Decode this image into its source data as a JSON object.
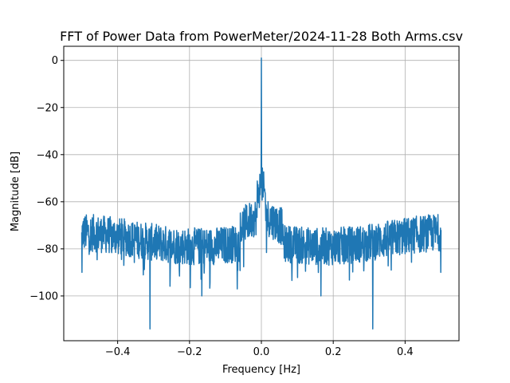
{
  "chart_data": {
    "type": "line",
    "title": "FFT of Power Data from PowerMeter/2024-11-28 Both Arms.csv",
    "xlabel": "Frequency [Hz]",
    "ylabel": "Magnitude [dB]",
    "xlim": [
      -0.55,
      0.55
    ],
    "ylim": [
      -119,
      6
    ],
    "xticks": [
      -0.4,
      -0.2,
      0.0,
      0.2,
      0.4
    ],
    "xtick_labels": [
      "−0.4",
      "−0.2",
      "0.0",
      "0.2",
      "0.4"
    ],
    "yticks": [
      0,
      -20,
      -40,
      -60,
      -80,
      -100
    ],
    "ytick_labels": [
      "0",
      "−20",
      "−40",
      "−60",
      "−80",
      "−100"
    ],
    "grid": true,
    "legend": "none",
    "line_color": "#1f77b4",
    "series": [
      {
        "points": [
          [
            -0.5,
            -73
          ],
          [
            -0.45,
            -80
          ],
          [
            -0.4,
            -79
          ],
          [
            -0.35,
            -78
          ],
          [
            -0.31,
            -114
          ],
          [
            -0.3,
            -78
          ],
          [
            -0.25,
            -78
          ],
          [
            -0.2,
            -77
          ],
          [
            -0.166,
            -100
          ],
          [
            -0.15,
            -75
          ],
          [
            -0.1,
            -74
          ],
          [
            -0.05,
            -72
          ],
          [
            -0.02,
            -64
          ],
          [
            -0.005,
            -58
          ],
          [
            0.0,
            1
          ],
          [
            0.005,
            -58
          ],
          [
            0.02,
            -64
          ],
          [
            0.05,
            -72
          ],
          [
            0.1,
            -74
          ],
          [
            0.15,
            -75
          ],
          [
            0.166,
            -100
          ],
          [
            0.2,
            -77
          ],
          [
            0.25,
            -78
          ],
          [
            0.3,
            -78
          ],
          [
            0.31,
            -114
          ],
          [
            0.35,
            -78
          ],
          [
            0.4,
            -79
          ],
          [
            0.45,
            -80
          ],
          [
            0.5,
            -73
          ]
        ]
      }
    ]
  }
}
